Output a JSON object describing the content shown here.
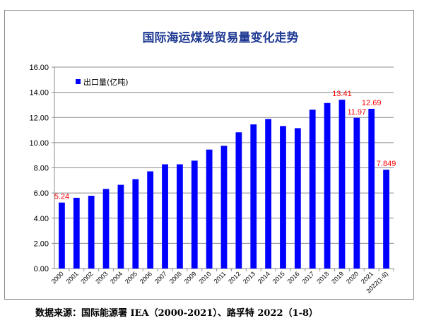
{
  "chart_data": {
    "type": "bar",
    "title": "国际海运煤炭贸易量变化走势",
    "xlabel": "",
    "ylabel": "",
    "categories": [
      "2000",
      "2001",
      "2002",
      "2003",
      "2004",
      "2005",
      "2006",
      "2007",
      "2008",
      "2009",
      "2010",
      "2011",
      "2012",
      "2013",
      "2014",
      "2015",
      "2016",
      "2017",
      "2018",
      "2019",
      "2020",
      "2021",
      "2022(1-8)"
    ],
    "series": [
      {
        "name": "出口量(亿吨)",
        "color": "#0000ff",
        "values": [
          5.24,
          5.62,
          5.78,
          6.32,
          6.65,
          7.1,
          7.72,
          8.28,
          8.28,
          8.57,
          9.45,
          9.75,
          10.82,
          11.45,
          11.88,
          11.32,
          11.15,
          12.62,
          13.15,
          13.41,
          11.97,
          12.69,
          7.849
        ]
      }
    ],
    "data_labels": [
      {
        "index": 0,
        "text": "5.24"
      },
      {
        "index": 19,
        "text": "13.41"
      },
      {
        "index": 20,
        "text": "11.97"
      },
      {
        "index": 21,
        "text": "12.69"
      },
      {
        "index": 22,
        "text": "7.849"
      }
    ],
    "label_color": "#ff0000",
    "yticks": [
      "0.00",
      "2.00",
      "4.00",
      "6.00",
      "8.00",
      "10.00",
      "12.00",
      "14.00",
      "16.00"
    ],
    "ylim": [
      0,
      16
    ],
    "grid": true,
    "legend_position": "top-left",
    "title_color": "#1f3a93"
  },
  "footer": {
    "source": "数据来源：国际能源署 IEA（2000-2021）、路孚特 2022（1-8）"
  }
}
